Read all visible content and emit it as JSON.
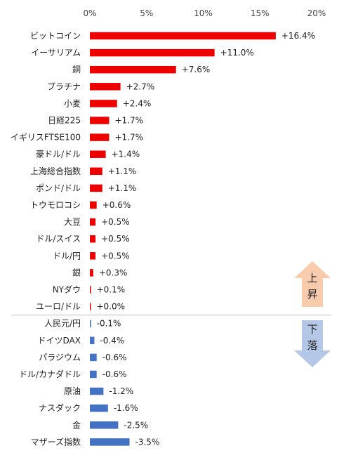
{
  "chart_data": {
    "type": "bar",
    "orientation": "horizontal",
    "xlim": [
      0,
      20
    ],
    "ticks": [
      "0%",
      "5%",
      "10%",
      "15%",
      "20%"
    ],
    "tick_values": [
      0,
      5,
      10,
      15,
      20
    ],
    "grid": false,
    "colors": {
      "positive": "#ee0000",
      "negative": "#4472c4",
      "up_arrow": "#f8cbad",
      "down_arrow": "#b4c7e7"
    },
    "categories": [
      "ビットコイン",
      "イーサリアム",
      "銅",
      "プラチナ",
      "小麦",
      "日経225",
      "イギリスFTSE100",
      "豪ドル/ドル",
      "上海総合指数",
      "ポンド/ドル",
      "トウモロコシ",
      "大豆",
      "ドル/スイス",
      "ドル/円",
      "銀",
      "NYダウ",
      "ユーロ/ドル",
      "人民元/円",
      "ドイツDAX",
      "パラジウム",
      "ドル/カナダドル",
      "原油",
      "ナスダック",
      "金",
      "マザーズ指数"
    ],
    "values": [
      16.4,
      11.0,
      7.6,
      2.7,
      2.4,
      1.7,
      1.7,
      1.4,
      1.1,
      1.1,
      0.6,
      0.5,
      0.5,
      0.5,
      0.3,
      0.1,
      0.0,
      -0.1,
      -0.4,
      -0.6,
      -0.6,
      -1.2,
      -1.6,
      -2.5,
      -3.5
    ],
    "data_labels": [
      "+16.4%",
      "+11.0%",
      "+7.6%",
      "+2.7%",
      "+2.4%",
      "+1.7%",
      "+1.7%",
      "+1.4%",
      "+1.1%",
      "+1.1%",
      "+0.6%",
      "+0.5%",
      "+0.5%",
      "+0.5%",
      "+0.3%",
      "+0.1%",
      "+0.0%",
      "-0.1%",
      "-0.4%",
      "-0.6%",
      "-0.6%",
      "-1.2%",
      "-1.6%",
      "-2.5%",
      "-3.5%"
    ],
    "annotations": {
      "up_label": "上\n昇",
      "down_label": "下\n落"
    }
  }
}
